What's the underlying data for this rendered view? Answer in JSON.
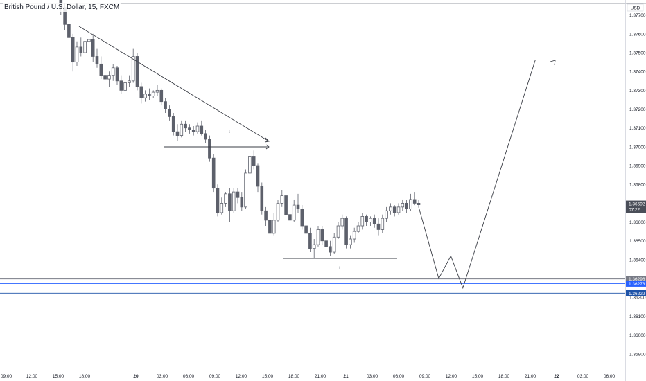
{
  "symbol_title": "British Pound / U.S. Dollar, 15, FXCM",
  "currency_label": "USD",
  "chart_data": {
    "type": "candlestick",
    "title": "British Pound / U.S. Dollar, 15, FXCM",
    "y_axis": {
      "unit": "USD",
      "range": [
        1.3585,
        1.3786
      ],
      "ticks": [
        "1.37700",
        "1.37600",
        "1.37500",
        "1.37400",
        "1.37300",
        "1.37200",
        "1.37100",
        "1.37000",
        "1.36900",
        "1.36800",
        "1.36600",
        "1.36500",
        "1.36400",
        "1.36200",
        "1.36100",
        "1.36000",
        "1.35900"
      ]
    },
    "x_axis": {
      "ticks": [
        "09:00",
        "12:00",
        "15:00",
        "18:00",
        "20",
        "03:00",
        "06:00",
        "09:00",
        "12:00",
        "15:00",
        "18:00",
        "21:00",
        "21",
        "03:00",
        "06:00",
        "09:00",
        "12:00",
        "15:00",
        "18:00",
        "21:00",
        "22",
        "03:00",
        "06:00"
      ]
    },
    "price_labels": [
      {
        "text": "1.36692",
        "sub": "07:22",
        "kind": "current",
        "color": "#4a4e58"
      },
      {
        "text": "1.36298",
        "kind": "level",
        "color": "#787b86"
      },
      {
        "text": "1.36273",
        "kind": "level",
        "color": "#2962ff"
      },
      {
        "text": "1.36222",
        "kind": "level",
        "color": "#1e53a8"
      }
    ],
    "horizontal_levels": [
      1.36298,
      1.36273,
      1.36222
    ],
    "candles": [
      [
        1.3786,
        1.3787,
        1.3779,
        1.3782
      ],
      [
        1.3782,
        1.3783,
        1.377,
        1.3774
      ],
      [
        1.3774,
        1.3776,
        1.3762,
        1.3765
      ],
      [
        1.3765,
        1.3768,
        1.3754,
        1.3758
      ],
      [
        1.3758,
        1.376,
        1.374,
        1.3745
      ],
      [
        1.3745,
        1.3756,
        1.3743,
        1.3753
      ],
      [
        1.3753,
        1.3758,
        1.3748,
        1.375
      ],
      [
        1.375,
        1.3759,
        1.3747,
        1.3756
      ],
      [
        1.3756,
        1.3762,
        1.3752,
        1.3757
      ],
      [
        1.3757,
        1.376,
        1.3745,
        1.3748
      ],
      [
        1.3748,
        1.3752,
        1.3742,
        1.3744
      ],
      [
        1.3744,
        1.3748,
        1.3736,
        1.3738
      ],
      [
        1.3738,
        1.3742,
        1.3734,
        1.3736
      ],
      [
        1.3736,
        1.374,
        1.3732,
        1.3738
      ],
      [
        1.3738,
        1.3744,
        1.3735,
        1.3742
      ],
      [
        1.3742,
        1.3743,
        1.3733,
        1.3735
      ],
      [
        1.3735,
        1.3738,
        1.3728,
        1.373
      ],
      [
        1.373,
        1.3736,
        1.3726,
        1.3734
      ],
      [
        1.3734,
        1.3738,
        1.3732,
        1.3735
      ],
      [
        1.3735,
        1.3752,
        1.3734,
        1.3748
      ],
      [
        1.3748,
        1.375,
        1.373,
        1.3732
      ],
      [
        1.3732,
        1.3734,
        1.3723,
        1.3726
      ],
      [
        1.3726,
        1.373,
        1.3724,
        1.3728
      ],
      [
        1.3728,
        1.3731,
        1.3725,
        1.3727
      ],
      [
        1.3727,
        1.373,
        1.3726,
        1.3729
      ],
      [
        1.3729,
        1.3733,
        1.3727,
        1.373
      ],
      [
        1.373,
        1.3731,
        1.3722,
        1.3724
      ],
      [
        1.3724,
        1.3726,
        1.3718,
        1.372
      ],
      [
        1.372,
        1.3722,
        1.3714,
        1.3716
      ],
      [
        1.3716,
        1.3718,
        1.3706,
        1.3708
      ],
      [
        1.3708,
        1.3712,
        1.3703,
        1.3706
      ],
      [
        1.3706,
        1.3714,
        1.3705,
        1.3712
      ],
      [
        1.3712,
        1.3714,
        1.3708,
        1.371
      ],
      [
        1.371,
        1.3712,
        1.3707,
        1.3709
      ],
      [
        1.3709,
        1.3711,
        1.3706,
        1.3708
      ],
      [
        1.3708,
        1.3713,
        1.3707,
        1.3711
      ],
      [
        1.3711,
        1.3714,
        1.3706,
        1.3707
      ],
      [
        1.3707,
        1.3709,
        1.3702,
        1.3704
      ],
      [
        1.3704,
        1.3706,
        1.3692,
        1.3694
      ],
      [
        1.3694,
        1.3696,
        1.3676,
        1.3678
      ],
      [
        1.3678,
        1.368,
        1.3663,
        1.3665
      ],
      [
        1.3665,
        1.3673,
        1.3664,
        1.367
      ],
      [
        1.367,
        1.3676,
        1.3668,
        1.3675
      ],
      [
        1.3675,
        1.3678,
        1.366,
        1.3666
      ],
      [
        1.3666,
        1.3678,
        1.3665,
        1.3676
      ],
      [
        1.3676,
        1.3678,
        1.367,
        1.3673
      ],
      [
        1.3673,
        1.3676,
        1.3666,
        1.3668
      ],
      [
        1.3668,
        1.3688,
        1.3667,
        1.3686
      ],
      [
        1.3686,
        1.3699,
        1.3684,
        1.3695
      ],
      [
        1.3695,
        1.3698,
        1.3688,
        1.369
      ],
      [
        1.369,
        1.3691,
        1.3676,
        1.3679
      ],
      [
        1.3679,
        1.3681,
        1.3664,
        1.3666
      ],
      [
        1.3666,
        1.3668,
        1.3658,
        1.3661
      ],
      [
        1.3661,
        1.3664,
        1.365,
        1.3654
      ],
      [
        1.3654,
        1.3665,
        1.3653,
        1.3661
      ],
      [
        1.3661,
        1.3672,
        1.366,
        1.367
      ],
      [
        1.367,
        1.3677,
        1.3668,
        1.3674
      ],
      [
        1.3674,
        1.3676,
        1.3662,
        1.3664
      ],
      [
        1.3664,
        1.3666,
        1.3658,
        1.3661
      ],
      [
        1.3661,
        1.3672,
        1.366,
        1.3669
      ],
      [
        1.3669,
        1.3675,
        1.3665,
        1.3667
      ],
      [
        1.3667,
        1.3669,
        1.3656,
        1.3658
      ],
      [
        1.3658,
        1.366,
        1.3652,
        1.3654
      ],
      [
        1.3654,
        1.3657,
        1.3644,
        1.3646
      ],
      [
        1.3646,
        1.3651,
        1.3641,
        1.3648
      ],
      [
        1.3648,
        1.3658,
        1.3647,
        1.3656
      ],
      [
        1.3656,
        1.3658,
        1.3648,
        1.365
      ],
      [
        1.365,
        1.3653,
        1.3645,
        1.3647
      ],
      [
        1.3647,
        1.365,
        1.3642,
        1.3644
      ],
      [
        1.3644,
        1.3654,
        1.3643,
        1.3652
      ],
      [
        1.3652,
        1.366,
        1.3651,
        1.3658
      ],
      [
        1.3658,
        1.3664,
        1.3656,
        1.3662
      ],
      [
        1.3662,
        1.3663,
        1.3646,
        1.3648
      ],
      [
        1.3648,
        1.3653,
        1.3646,
        1.3651
      ],
      [
        1.3651,
        1.3657,
        1.3649,
        1.3655
      ],
      [
        1.3655,
        1.366,
        1.3654,
        1.3658
      ],
      [
        1.3658,
        1.3665,
        1.3656,
        1.3663
      ],
      [
        1.3663,
        1.3664,
        1.3658,
        1.366
      ],
      [
        1.366,
        1.3663,
        1.3658,
        1.3662
      ],
      [
        1.3662,
        1.3664,
        1.3657,
        1.3659
      ],
      [
        1.3659,
        1.3662,
        1.3653,
        1.3656
      ],
      [
        1.3656,
        1.3664,
        1.3654,
        1.3662
      ],
      [
        1.3662,
        1.3668,
        1.366,
        1.3666
      ],
      [
        1.3666,
        1.367,
        1.3664,
        1.3668
      ],
      [
        1.3668,
        1.3669,
        1.3663,
        1.3665
      ],
      [
        1.3665,
        1.367,
        1.3664,
        1.3668
      ],
      [
        1.3668,
        1.3672,
        1.3666,
        1.367
      ],
      [
        1.367,
        1.3672,
        1.3665,
        1.3667
      ],
      [
        1.3667,
        1.3675,
        1.3666,
        1.3672
      ],
      [
        1.3672,
        1.3676,
        1.3669,
        1.367
      ],
      [
        1.367,
        1.3672,
        1.3668,
        1.36692
      ]
    ],
    "projection_path": [
      [
        90,
        1.3668
      ],
      [
        95,
        1.363
      ],
      [
        98,
        1.3642
      ],
      [
        101,
        1.3625
      ],
      [
        119,
        1.3746
      ]
    ]
  }
}
